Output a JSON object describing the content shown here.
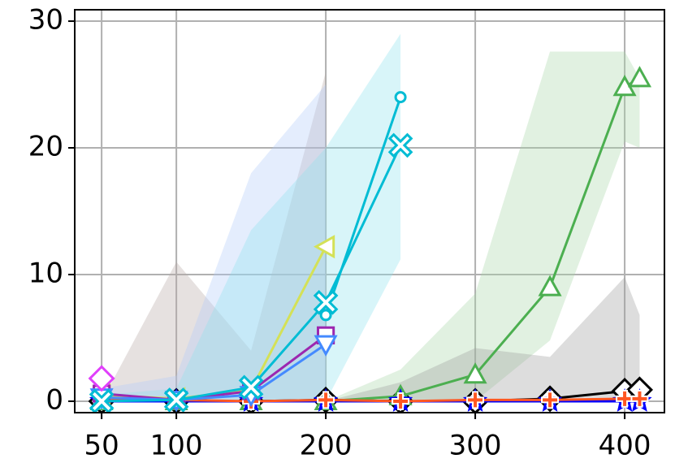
{
  "chart_data": {
    "type": "line",
    "xlim": [
      32,
      426.6
    ],
    "ylim": [
      -0.9,
      30.9
    ],
    "xticks": [
      50,
      100,
      200,
      300,
      400
    ],
    "yticks": [
      0,
      10,
      20,
      30
    ],
    "grid": true,
    "bands": [
      {
        "color": "#b8aaa6",
        "x": [
          50,
          100,
          150,
          200
        ],
        "lower": [
          0,
          0,
          0,
          0
        ],
        "upper": [
          0,
          11,
          4,
          26
        ]
      },
      {
        "color": "#b3ccfa",
        "x": [
          50,
          100,
          150,
          200
        ],
        "lower": [
          0,
          0,
          0,
          0
        ],
        "upper": [
          1,
          2,
          18,
          25
        ]
      },
      {
        "color": "#8ee3ee",
        "x": [
          50,
          100,
          150,
          200,
          250
        ],
        "lower": [
          0,
          0,
          0,
          0,
          11.2
        ],
        "upper": [
          0.5,
          1,
          13.5,
          20,
          29
        ]
      },
      {
        "color": "#a9d8aa",
        "x": [
          200,
          250,
          300,
          350,
          400,
          410
        ],
        "lower": [
          0,
          0,
          0,
          4.8,
          20.5,
          20
        ],
        "upper": [
          0,
          2.5,
          8.5,
          27.6,
          27.6,
          25.5
        ]
      },
      {
        "color": "#9e9e9e",
        "x": [
          200,
          250,
          300,
          350,
          400,
          410
        ],
        "lower": [
          0,
          0,
          0,
          0,
          0,
          0
        ],
        "upper": [
          0,
          1.5,
          4.2,
          3.5,
          9.8,
          6.8
        ]
      }
    ],
    "series": [
      {
        "color": "#000000",
        "marker": "diamond",
        "x": [
          50,
          100,
          150,
          200,
          250,
          300,
          350,
          400,
          410
        ],
        "values": [
          0,
          0,
          0,
          0.1,
          0,
          0,
          0.2,
          0.8,
          0.9
        ]
      },
      {
        "color": "#4caf50",
        "marker": "triangle-up",
        "x": [
          50,
          100,
          150,
          200,
          250,
          300,
          350,
          400,
          410
        ],
        "values": [
          0,
          0,
          0,
          0,
          0.4,
          2.1,
          9,
          24.8,
          25.5
        ]
      },
      {
        "color": "#0000ff",
        "marker": "star",
        "x": [
          50,
          100,
          150,
          200,
          250,
          300,
          350,
          400,
          410
        ],
        "values": [
          0,
          0,
          0,
          0,
          0,
          0,
          0,
          0,
          0
        ]
      },
      {
        "color": "#ff5722",
        "marker": "plus",
        "x": [
          50,
          100,
          150,
          200,
          250,
          300,
          350,
          400,
          410
        ],
        "values": [
          0.1,
          0.1,
          0,
          0.1,
          0,
          0.1,
          0.1,
          0.2,
          0.2
        ]
      },
      {
        "color": "#00bcd4",
        "marker": "circle",
        "x": [
          200,
          250
        ],
        "values": [
          6.8,
          24
        ]
      },
      {
        "color": "#d4e157",
        "marker": "triangle-left",
        "x": [
          50,
          100,
          150,
          200
        ],
        "values": [
          0.5,
          0.2,
          0.9,
          12.2
        ]
      },
      {
        "color": "#9c27b0",
        "marker": "square",
        "x": [
          50,
          100,
          150,
          200
        ],
        "values": [
          0.6,
          0.1,
          0.8,
          5.2
        ]
      },
      {
        "color": "#448aff",
        "marker": "triangle-down",
        "x": [
          50,
          100,
          150,
          200
        ],
        "values": [
          0.3,
          0.1,
          0.5,
          4.5
        ]
      },
      {
        "color": "#00bcd4",
        "marker": "x",
        "x": [
          50,
          100,
          150,
          200,
          250
        ],
        "values": [
          0,
          0.1,
          1.1,
          7.8,
          20.2
        ]
      },
      {
        "color": "#e040fb",
        "marker": "diamond",
        "x": [
          50
        ],
        "values": [
          1.8
        ]
      }
    ]
  }
}
